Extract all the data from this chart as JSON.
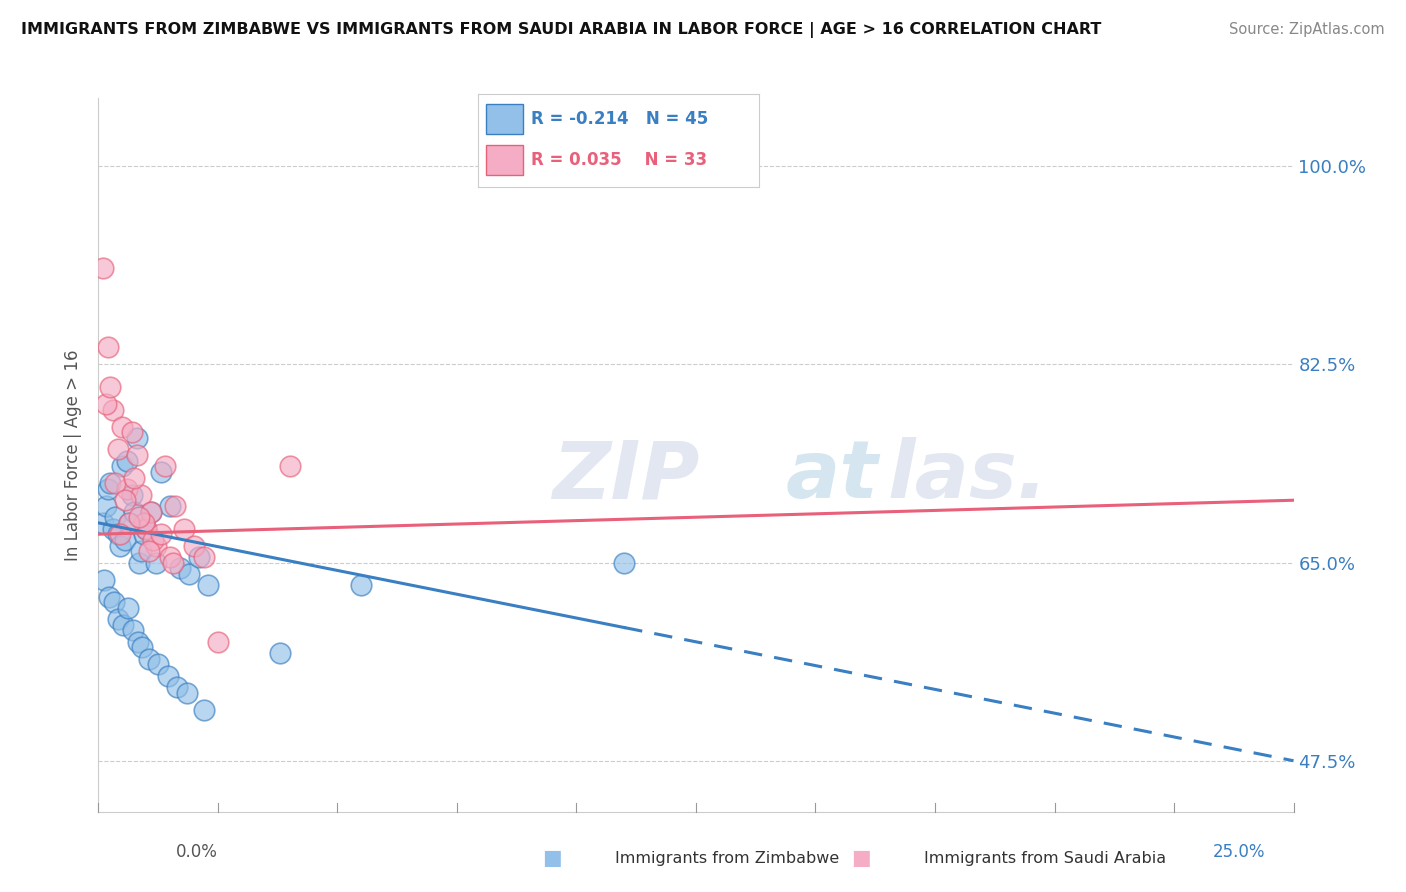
{
  "title": "IMMIGRANTS FROM ZIMBABWE VS IMMIGRANTS FROM SAUDI ARABIA IN LABOR FORCE | AGE > 16 CORRELATION CHART",
  "source": "Source: ZipAtlas.com",
  "ylabel_label": "In Labor Force | Age > 16",
  "y_ticks": [
    47.5,
    65.0,
    82.5,
    100.0
  ],
  "y_tick_labels": [
    "47.5%",
    "65.0%",
    "82.5%",
    "100.0%"
  ],
  "x_range": [
    0.0,
    25.0
  ],
  "y_range": [
    43.0,
    106.0
  ],
  "legend_r1": "R = -0.214",
  "legend_n1": "N = 45",
  "legend_r2": "R = 0.035",
  "legend_n2": "N = 33",
  "color_zimbabwe": "#92c0e8",
  "color_saudi": "#f4adc4",
  "color_line_zimbabwe": "#3a7fc1",
  "color_line_saudi": "#e8607a",
  "zimbabwe_x": [
    0.1,
    0.15,
    0.2,
    0.25,
    0.3,
    0.35,
    0.4,
    0.45,
    0.5,
    0.55,
    0.6,
    0.65,
    0.7,
    0.75,
    0.8,
    0.85,
    0.9,
    0.95,
    1.0,
    1.1,
    1.2,
    1.3,
    1.5,
    1.7,
    1.9,
    2.1,
    2.3,
    0.12,
    0.22,
    0.32,
    0.42,
    0.52,
    0.62,
    0.72,
    0.82,
    0.92,
    1.05,
    1.25,
    1.45,
    1.65,
    1.85,
    5.5,
    2.2,
    11.0,
    3.8
  ],
  "zimbabwe_y": [
    68.5,
    70.0,
    71.5,
    72.0,
    68.0,
    69.0,
    67.5,
    66.5,
    73.5,
    67.0,
    74.0,
    68.5,
    71.0,
    69.5,
    76.0,
    65.0,
    66.0,
    67.5,
    68.0,
    69.5,
    65.0,
    73.0,
    70.0,
    64.5,
    64.0,
    65.5,
    63.0,
    63.5,
    62.0,
    61.5,
    60.0,
    59.5,
    61.0,
    59.0,
    58.0,
    57.5,
    56.5,
    56.0,
    55.0,
    54.0,
    53.5,
    63.0,
    52.0,
    65.0,
    57.0
  ],
  "saudi_x": [
    0.1,
    0.2,
    0.3,
    0.4,
    0.5,
    0.6,
    0.7,
    0.8,
    0.9,
    1.0,
    1.1,
    1.2,
    1.4,
    1.6,
    1.8,
    2.0,
    2.2,
    0.15,
    0.35,
    0.55,
    0.75,
    0.95,
    1.15,
    1.5,
    0.25,
    0.65,
    1.05,
    1.55,
    2.5,
    4.0,
    0.45,
    0.85,
    1.3
  ],
  "saudi_y": [
    91.0,
    84.0,
    78.5,
    75.0,
    77.0,
    71.5,
    76.5,
    74.5,
    71.0,
    68.0,
    69.5,
    66.5,
    73.5,
    70.0,
    68.0,
    66.5,
    65.5,
    79.0,
    72.0,
    70.5,
    72.5,
    68.5,
    67.0,
    65.5,
    80.5,
    68.5,
    66.0,
    65.0,
    58.0,
    73.5,
    67.5,
    69.0,
    67.5
  ],
  "zim_line_x0": 0.0,
  "zim_line_y0": 68.5,
  "zim_line_x1": 25.0,
  "zim_line_y1": 47.5,
  "sau_line_x0": 0.0,
  "sau_line_y0": 67.5,
  "sau_line_x1": 25.0,
  "sau_line_y1": 70.5,
  "zim_solid_end_x": 11.0
}
